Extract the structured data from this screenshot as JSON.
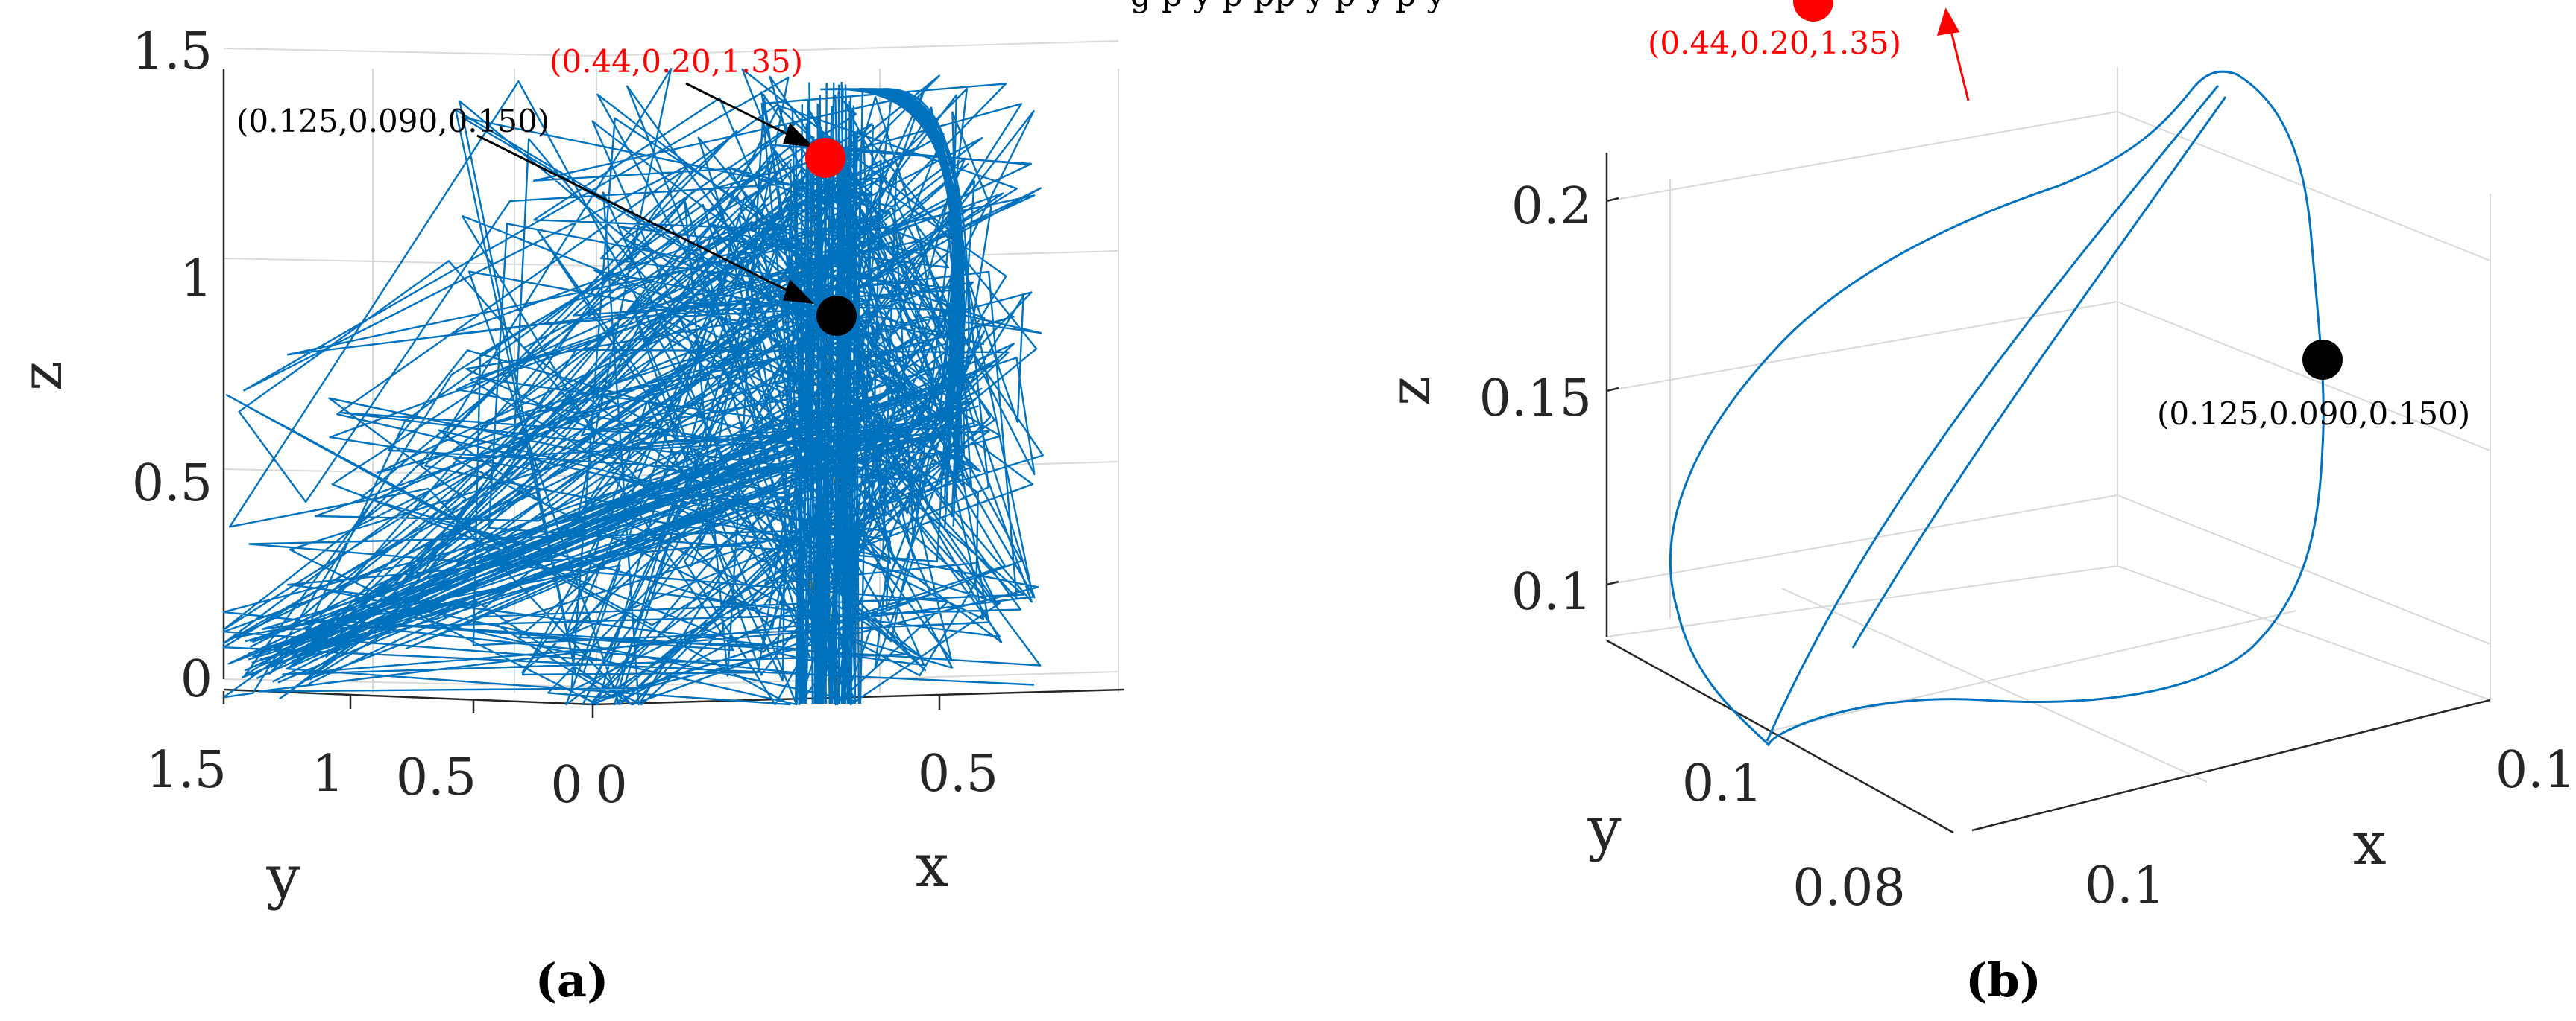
{
  "page": {
    "cropped_header": "g   p          y     p       pp           y                p   y      p                y",
    "figure_labels": [
      "(a)",
      "(b)"
    ]
  },
  "colors": {
    "line": "#0072bd",
    "grid": "#d9d9d9",
    "axis": "#262626",
    "red_marker": "#ff0000",
    "black_marker": "#000000",
    "annotation_black": "#000000",
    "annotation_red": "#ff0000"
  },
  "chart_data": [
    {
      "panel": "a",
      "type": "line",
      "projection": "3d",
      "xlabel": "x",
      "ylabel": "y",
      "zlabel": "z",
      "z_ticks": [
        "0",
        "0.5",
        "1",
        "1.5"
      ],
      "y_ticks": [
        "1.5",
        "1",
        "0.5",
        "0"
      ],
      "x_ticks": [
        "0",
        "0.5"
      ],
      "zlim": [
        0,
        1.5
      ],
      "ylim": [
        0,
        1.5
      ],
      "xlim": [
        0,
        0.7
      ],
      "grid": true,
      "series_style": "dense erratic trajectory",
      "markers": [
        {
          "label": "(0.44,0.20,1.35)",
          "x": 0.44,
          "y": 0.2,
          "z": 1.35,
          "color": "red"
        },
        {
          "label": "(0.125,0.090,0.150)",
          "x": 0.125,
          "y": 0.09,
          "z": 0.15,
          "color": "black"
        }
      ]
    },
    {
      "panel": "b",
      "type": "line",
      "projection": "3d",
      "xlabel": "x",
      "ylabel": "y",
      "zlabel": "z",
      "z_ticks": [
        "0.1",
        "0.15",
        "0.2"
      ],
      "y_ticks": [
        "0.08",
        "0.1"
      ],
      "x_ticks": [
        "0.1",
        "0.1"
      ],
      "zlim": [
        0.09,
        0.22
      ],
      "grid": true,
      "series_style": "smooth closed loop converging to fixed point",
      "markers": [
        {
          "label": "(0.125,0.090,0.150)",
          "x": 0.125,
          "y": 0.09,
          "z": 0.15,
          "color": "black"
        },
        {
          "label": "(0.44,0.20,1.35)",
          "x": 0.44,
          "y": 0.2,
          "z": 1.35,
          "color": "red",
          "off_chart": true
        }
      ]
    }
  ]
}
